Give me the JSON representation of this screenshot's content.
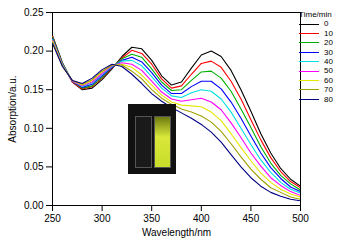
{
  "chart_data": {
    "type": "line",
    "xlabel": "Wavelength/nm",
    "ylabel": "Absorption/a.u.",
    "legend_title": "Time/min",
    "legend": "top-right",
    "grid": false,
    "x": [
      250,
      260,
      270,
      280,
      290,
      300,
      310,
      320,
      330,
      340,
      350,
      360,
      370,
      380,
      390,
      400,
      410,
      420,
      430,
      440,
      450,
      460,
      470,
      480,
      490,
      500
    ],
    "xlim": [
      250,
      500
    ],
    "xticks": [
      250,
      300,
      350,
      400,
      450,
      500
    ],
    "ylim": [
      0,
      0.25
    ],
    "yticks": [
      {
        "value": 0,
        "label": "0.00"
      },
      {
        "value": 0.05,
        "label": "0.05"
      },
      {
        "value": 0.1,
        "label": "0.10"
      },
      {
        "value": 0.15,
        "label": "0.15"
      },
      {
        "value": 0.2,
        "label": "0.20"
      },
      {
        "value": 0.25,
        "label": "0.25"
      }
    ],
    "series": [
      {
        "name": "0",
        "color": "#000000",
        "values": [
          0.22,
          0.185,
          0.16,
          0.15,
          0.152,
          0.163,
          0.177,
          0.193,
          0.205,
          0.203,
          0.188,
          0.168,
          0.156,
          0.16,
          0.178,
          0.195,
          0.2,
          0.193,
          0.175,
          0.15,
          0.122,
          0.093,
          0.068,
          0.048,
          0.034,
          0.025
        ]
      },
      {
        "name": "10",
        "color": "#ff0000",
        "values": [
          0.219,
          0.184,
          0.16,
          0.151,
          0.154,
          0.165,
          0.178,
          0.191,
          0.201,
          0.197,
          0.183,
          0.164,
          0.152,
          0.155,
          0.17,
          0.184,
          0.187,
          0.179,
          0.161,
          0.138,
          0.111,
          0.085,
          0.062,
          0.044,
          0.031,
          0.023
        ]
      },
      {
        "name": "20",
        "color": "#00b000",
        "values": [
          0.218,
          0.184,
          0.161,
          0.152,
          0.155,
          0.166,
          0.179,
          0.19,
          0.196,
          0.192,
          0.177,
          0.16,
          0.149,
          0.15,
          0.162,
          0.173,
          0.174,
          0.165,
          0.148,
          0.125,
          0.101,
          0.076,
          0.055,
          0.039,
          0.028,
          0.02
        ]
      },
      {
        "name": "30",
        "color": "#0000ff",
        "values": [
          0.216,
          0.183,
          0.161,
          0.153,
          0.157,
          0.168,
          0.179,
          0.188,
          0.192,
          0.186,
          0.172,
          0.156,
          0.145,
          0.145,
          0.154,
          0.161,
          0.161,
          0.151,
          0.134,
          0.113,
          0.09,
          0.068,
          0.049,
          0.035,
          0.024,
          0.018
        ]
      },
      {
        "name": "40",
        "color": "#00e0e0",
        "values": [
          0.215,
          0.183,
          0.161,
          0.154,
          0.159,
          0.17,
          0.18,
          0.187,
          0.188,
          0.181,
          0.167,
          0.152,
          0.142,
          0.14,
          0.146,
          0.15,
          0.148,
          0.138,
          0.121,
          0.1,
          0.079,
          0.059,
          0.043,
          0.03,
          0.021,
          0.016
        ]
      },
      {
        "name": "50",
        "color": "#ff00ff",
        "values": [
          0.214,
          0.182,
          0.161,
          0.155,
          0.16,
          0.171,
          0.181,
          0.185,
          0.183,
          0.175,
          0.161,
          0.147,
          0.138,
          0.135,
          0.137,
          0.139,
          0.134,
          0.124,
          0.107,
          0.088,
          0.068,
          0.051,
          0.036,
          0.026,
          0.018,
          0.013
        ]
      },
      {
        "name": "60",
        "color": "#e6e600",
        "values": [
          0.213,
          0.181,
          0.162,
          0.156,
          0.162,
          0.173,
          0.182,
          0.183,
          0.179,
          0.169,
          0.156,
          0.143,
          0.134,
          0.13,
          0.129,
          0.128,
          0.121,
          0.11,
          0.093,
          0.075,
          0.058,
          0.042,
          0.03,
          0.021,
          0.015,
          0.011
        ]
      },
      {
        "name": "70",
        "color": "#a0a000",
        "values": [
          0.211,
          0.181,
          0.162,
          0.157,
          0.163,
          0.174,
          0.182,
          0.182,
          0.174,
          0.164,
          0.15,
          0.139,
          0.131,
          0.125,
          0.121,
          0.116,
          0.108,
          0.096,
          0.08,
          0.063,
          0.047,
          0.034,
          0.023,
          0.017,
          0.011,
          0.008
        ]
      },
      {
        "name": "80",
        "color": "#000080",
        "values": [
          0.21,
          0.18,
          0.162,
          0.158,
          0.165,
          0.176,
          0.183,
          0.18,
          0.17,
          0.158,
          0.145,
          0.135,
          0.127,
          0.12,
          0.113,
          0.105,
          0.095,
          0.082,
          0.066,
          0.05,
          0.036,
          0.025,
          0.017,
          0.012,
          0.008,
          0.006
        ]
      }
    ]
  }
}
